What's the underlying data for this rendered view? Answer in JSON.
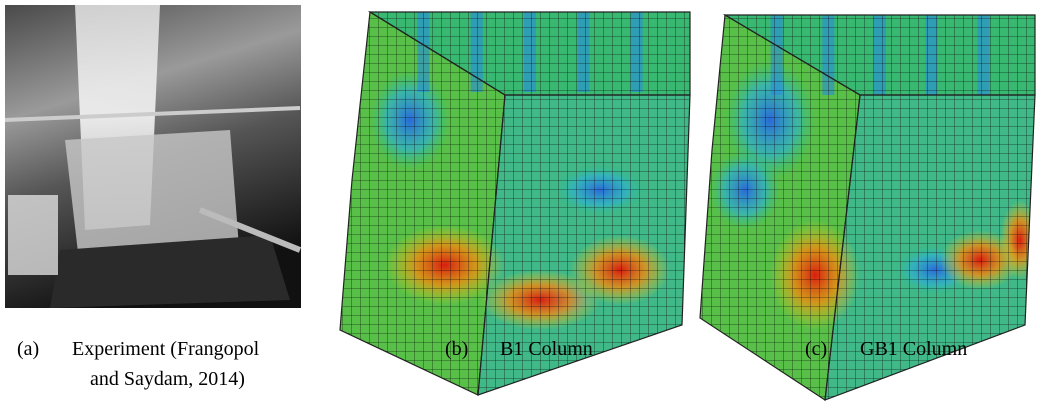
{
  "figures": [
    {
      "label": "(a)",
      "lines": [
        "Experiment (Frangopol",
        "and Saydam, 2014)"
      ]
    },
    {
      "label": "(b)",
      "lines": [
        "B1 Column"
      ]
    },
    {
      "label": "(c)",
      "lines": [
        "GB1 Column"
      ]
    }
  ]
}
